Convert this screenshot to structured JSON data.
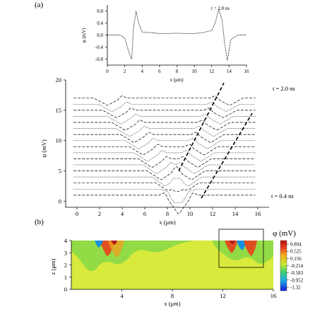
{
  "panel_a": {
    "label": "(a)",
    "top_plot": {
      "annotation": "t = 2.0 ns",
      "ylabel": "φ (mV)",
      "xlabel": "x (μm)"
    },
    "main_plot": {
      "annotation_top": "t = 2.0 ns",
      "annotation_bottom": "t = 0.4 ns",
      "ylabel": "φ (mV)",
      "xlabel": "x (μm)"
    }
  },
  "panel_b": {
    "label": "(b)",
    "ylabel": "z (μm)",
    "xlabel": "x (μm)",
    "colorbar_title": "φ (mV)"
  },
  "chart_data": [
    {
      "type": "line",
      "title": "",
      "annotation": "t = 2.0 ns",
      "xlabel": "x (μm)",
      "ylabel": "φ (mV)",
      "xlim": [
        0,
        16
      ],
      "ylim": [
        -1.0,
        1.0
      ],
      "xticks": [
        "0",
        "2",
        "4",
        "6",
        "8",
        "10",
        "12",
        "14",
        "16"
      ],
      "yticks": [
        "-0.8",
        "-0.4",
        "0.0",
        "0.4",
        "0.8"
      ],
      "series": [
        {
          "x": [
            0,
            1.5,
            2.0,
            2.5,
            2.8,
            3.0,
            3.3,
            3.6,
            4.0,
            5,
            6,
            7,
            8,
            9,
            10,
            11,
            12,
            12.4,
            12.8,
            13.2,
            13.5,
            13.8,
            14.2,
            15,
            16
          ],
          "values": [
            0.0,
            0.0,
            -0.1,
            -0.6,
            -0.8,
            0.2,
            0.8,
            0.4,
            0.1,
            0.08,
            0.05,
            0.05,
            0.06,
            0.05,
            0.05,
            0.08,
            0.15,
            0.4,
            0.85,
            0.5,
            -0.3,
            -0.85,
            -0.15,
            0.0,
            0.0
          ]
        }
      ]
    },
    {
      "type": "line",
      "title": "",
      "xlabel": "x (μm)",
      "ylabel": "φ (mV)",
      "xlim": [
        -1,
        17
      ],
      "ylim": [
        -1,
        20
      ],
      "xticks": [
        "0",
        "2",
        "4",
        "6",
        "8",
        "10",
        "12",
        "14",
        "16"
      ],
      "yticks": [
        "0",
        "5",
        "10",
        "15",
        "20"
      ],
      "annotations": [
        "t = 2.0 ns",
        "t = 0.4 ns"
      ],
      "offset_step": 1,
      "trace_count": 17,
      "trace_pattern": "stacked dotted/dashed traces; left V-shaped dip moves from x≈9 (bottom) toward x≈2.5 (top), right dip from x≈9 toward x≈13.5",
      "dashed_fronts": [
        {
          "x": [
            9.0,
            13.0
          ],
          "y": [
            5,
            19.5
          ]
        },
        {
          "x": [
            11.0,
            15.5
          ],
          "y": [
            0.5,
            14.5
          ]
        }
      ]
    },
    {
      "type": "heatmap",
      "title": "",
      "xlabel": "x (μm)",
      "ylabel": "z (μm)",
      "xlim": [
        0,
        16
      ],
      "ylim": [
        0,
        4
      ],
      "xticks": [
        "4",
        "8",
        "12",
        "16"
      ],
      "yticks": [
        "0",
        "1",
        "2",
        "3",
        "4"
      ],
      "colorbar_title": "φ (mV)",
      "colorbar_ticks": [
        "0.894",
        "0.525",
        "0.156",
        "-0.214",
        "-0.583",
        "-0.952",
        "-1.32"
      ],
      "highlight_box_x": [
        11.5,
        15.5
      ],
      "highlight_box_y": [
        1.2,
        4.4
      ]
    }
  ],
  "colors": {
    "heat_background": "#d8ea3c",
    "heat_green": "#6ed24a",
    "heat_red": "#d82020",
    "heat_blue": "#2038d8"
  }
}
